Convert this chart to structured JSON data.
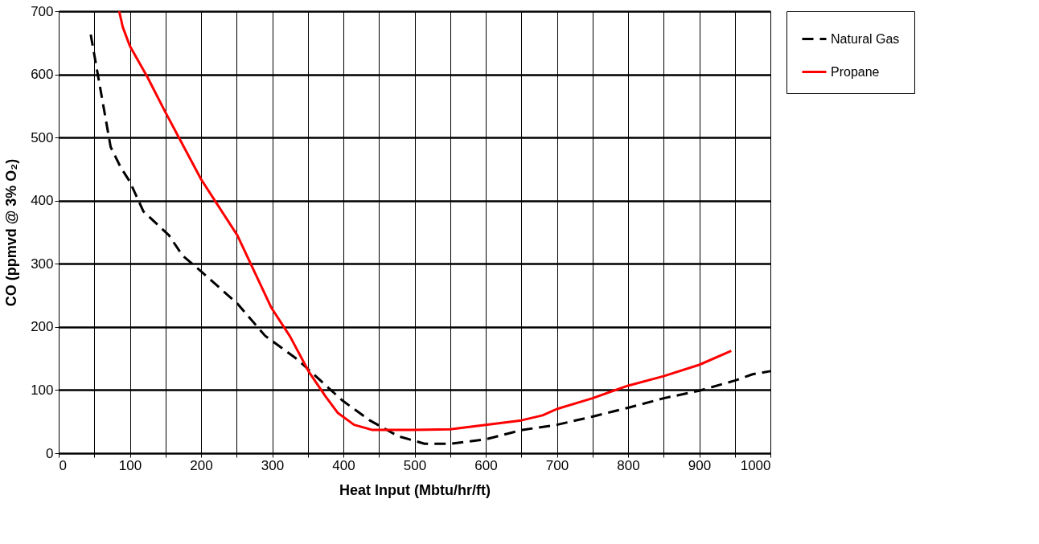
{
  "chart_data": {
    "type": "line",
    "xlabel": "Heat Input (Mbtu/hr/ft)",
    "ylabel": "CO (ppmvd @ 3% O₂)",
    "xlim": [
      0,
      1000
    ],
    "ylim": [
      0,
      700
    ],
    "xticks": [
      0,
      {
        "value": 50,
        "label": null
      },
      100,
      {
        "value": 150,
        "label": null
      },
      200,
      {
        "value": 250,
        "label": null
      },
      300,
      {
        "value": 350,
        "label": null
      },
      400,
      {
        "value": 450,
        "label": null
      },
      500,
      {
        "value": 550,
        "label": null
      },
      600,
      {
        "value": 650,
        "label": null
      },
      700,
      {
        "value": 750,
        "label": null
      },
      800,
      {
        "value": 850,
        "label": null
      },
      900,
      {
        "value": 950,
        "label": null
      },
      1000
    ],
    "yticks": [
      0,
      100,
      200,
      300,
      400,
      500,
      600,
      700
    ],
    "grid": true,
    "legend": "right",
    "marker": "none",
    "series": [
      {
        "name": "Natural Gas",
        "color": "#000000",
        "line_style": "dashed",
        "x": [
          45,
          73,
          87,
          100,
          119,
          155,
          174,
          200,
          251,
          290,
          336,
          398,
          437,
          477,
          514,
          550,
          600,
          652,
          700,
          750,
          800,
          850,
          900,
          950,
          975,
          1000
        ],
        "values": [
          663,
          485,
          453,
          430,
          383,
          345,
          313,
          288,
          237,
          186,
          148,
          84,
          52,
          27,
          15,
          15,
          22,
          37,
          45,
          58,
          72,
          87,
          99,
          115,
          125,
          130
        ]
      },
      {
        "name": "Propane",
        "color": "#ff0000",
        "line_style": "solid",
        "x": [
          85,
          90,
          100,
          125,
          149,
          200,
          251,
          299,
          325,
          352,
          375,
          392,
          415,
          440,
          500,
          550,
          600,
          650,
          680,
          700,
          750,
          800,
          850,
          900,
          945
        ],
        "values": [
          700,
          675,
          645,
          595,
          542,
          434,
          345,
          230,
          185,
          128,
          90,
          64,
          45,
          37,
          37,
          38,
          45,
          52,
          60,
          70,
          87,
          107,
          122,
          140,
          162
        ]
      }
    ]
  }
}
